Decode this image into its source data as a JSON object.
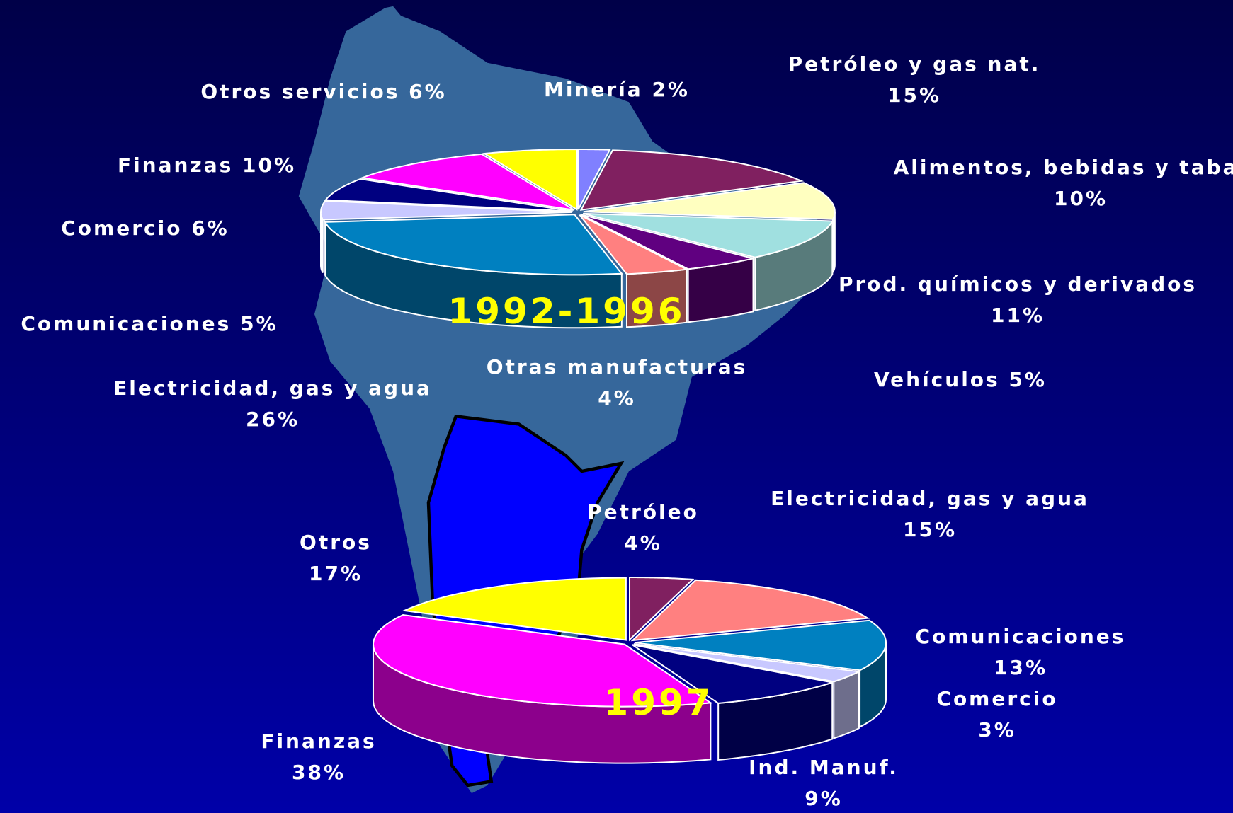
{
  "chart_data": [
    {
      "type": "pie3d",
      "title": "1992-1996",
      "categories": [
        "Minería",
        "Petróleo y gas nat.",
        "Alimentos, bebidas y tabaco",
        "Prod. químicos y derivados",
        "Vehículos",
        "Otras manufacturas",
        "Electricidad, gas y agua",
        "Comunicaciones",
        "Comercio",
        "Finanzas",
        "Otros servicios"
      ],
      "values": [
        2,
        15,
        10,
        11,
        5,
        4,
        26,
        5,
        6,
        10,
        6
      ],
      "value_labels": [
        "2%",
        "15%",
        "10%",
        "11%",
        "5%",
        "4%",
        "26%",
        "5%",
        "6%",
        "10%",
        "6%"
      ],
      "colors": [
        "#8080ff",
        "#802060",
        "#ffffc0",
        "#a0e0e0",
        "#600080",
        "#ff8080",
        "#0080c0",
        "#c8c8ff",
        "#000080",
        "#ff00ff",
        "#ffff00"
      ]
    },
    {
      "type": "pie3d",
      "title": "1997",
      "categories": [
        "Petróleo",
        "Electricidad, gas y agua",
        "Comunicaciones",
        "Comercio",
        "Ind. Manuf.",
        "Finanzas",
        "Otros"
      ],
      "values": [
        4,
        15,
        13,
        3,
        9,
        38,
        17
      ],
      "value_labels": [
        "4%",
        "15%",
        "13%",
        "3%",
        "9%",
        "38%",
        "17%"
      ],
      "colors": [
        "#802060",
        "#ff8080",
        "#0080c0",
        "#c8c8ff",
        "#000080",
        "#ff00ff",
        "#ffff00"
      ]
    }
  ]
}
